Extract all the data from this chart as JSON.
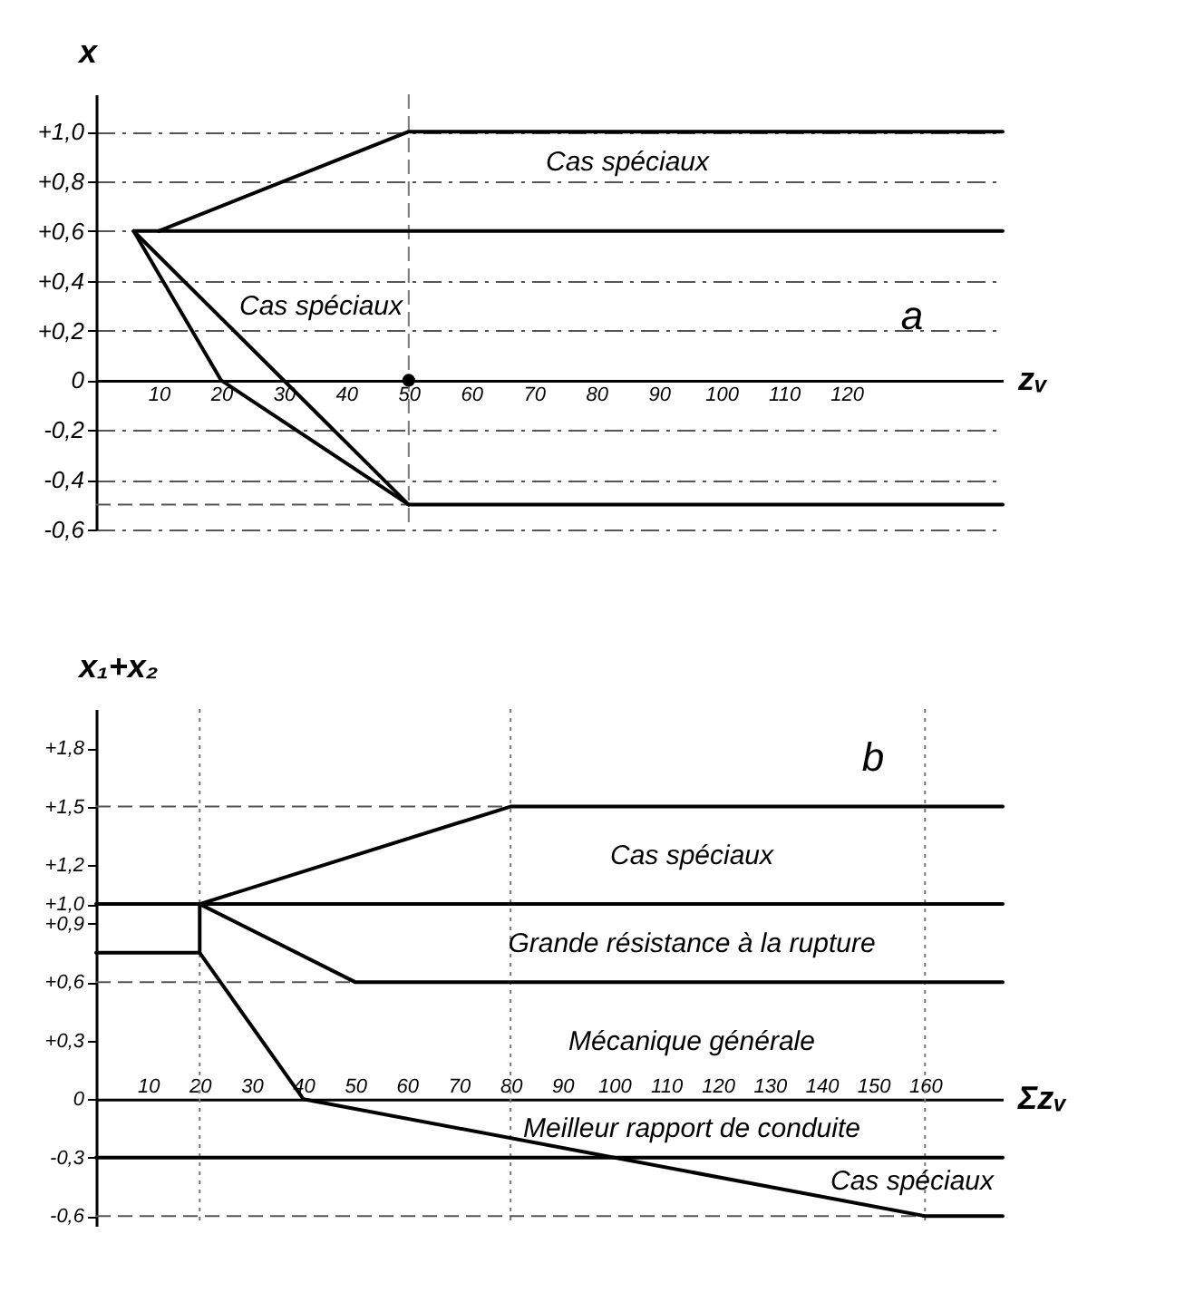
{
  "chart_data": [
    {
      "type": "line",
      "xlabel": "zᵥ",
      "ylabel": "x",
      "xlim": [
        0,
        145
      ],
      "ylim": [
        -0.6,
        1.15
      ],
      "xticks": [
        10,
        20,
        30,
        40,
        50,
        60,
        70,
        80,
        90,
        100,
        110,
        120
      ],
      "yticks": [
        {
          "value": 1.0,
          "label": "+1,0"
        },
        {
          "value": 0.8,
          "label": "+0,8"
        },
        {
          "value": 0.6,
          "label": "+0,6"
        },
        {
          "value": 0.4,
          "label": "+0,4"
        },
        {
          "value": 0.2,
          "label": "+0,2"
        },
        0,
        {
          "value": -0.2,
          "label": "-0,2"
        },
        {
          "value": -0.4,
          "label": "-0,4"
        },
        {
          "value": -0.6,
          "label": "-0,6"
        }
      ],
      "grid": "y",
      "line_style": "solid",
      "series": [
        {
          "color": "#000000",
          "x": [
            10,
            50,
            145
          ],
          "values": [
            0.6,
            1.0,
            1.0
          ]
        },
        {
          "color": "#000000",
          "x": [
            6,
            145
          ],
          "values": [
            0.6,
            0.6
          ]
        },
        {
          "color": "#000000",
          "x": [
            6,
            20,
            50,
            145
          ],
          "values": [
            0.6,
            0,
            -0.5,
            -0.5
          ]
        },
        {
          "color": "#000000",
          "x": [
            6,
            50
          ],
          "values": [
            0.6,
            -0.5
          ]
        },
        {
          "type": "scatter",
          "marker": "circle",
          "color": "#000000",
          "x": [
            50
          ],
          "values": [
            0
          ]
        }
      ],
      "ref_lines": [
        {
          "axis": "y",
          "value": -0.5,
          "line_style": "dashed",
          "color": "#555555"
        },
        {
          "axis": "x",
          "value": 50,
          "line_style": "dashed",
          "color": "#777777"
        }
      ],
      "annotations": [
        "Cas spéciaux",
        "Cas spéciaux",
        "a"
      ]
    },
    {
      "type": "line",
      "xlabel": "Σzᵥ",
      "ylabel": "x₁+x₂",
      "xlim": [
        0,
        175
      ],
      "ylim": [
        -0.65,
        2.0
      ],
      "xticks": [
        10,
        20,
        30,
        40,
        50,
        60,
        70,
        80,
        90,
        100,
        110,
        120,
        130,
        140,
        150,
        160
      ],
      "yticks": [
        {
          "value": 1.8,
          "label": "+1,8"
        },
        {
          "value": 1.5,
          "label": "+1,5"
        },
        {
          "value": 1.2,
          "label": "+1,2"
        },
        {
          "value": 1.0,
          "label": "+1,0"
        },
        {
          "value": 0.9,
          "label": "+0,9"
        },
        {
          "value": 0.6,
          "label": "+0,6"
        },
        {
          "value": 0.3,
          "label": "+0,3"
        },
        0,
        {
          "value": -0.3,
          "label": "-0,3"
        },
        {
          "value": -0.6,
          "label": "-0,6"
        }
      ],
      "line_style": "solid",
      "series": [
        {
          "color": "#000000",
          "x": [
            0,
            175
          ],
          "values": [
            1.0,
            1.0
          ]
        },
        {
          "color": "#000000",
          "x": [
            0,
            20,
            20
          ],
          "values": [
            0.75,
            0.75,
            1.0
          ]
        },
        {
          "color": "#000000",
          "x": [
            20,
            80,
            175
          ],
          "values": [
            1.0,
            1.5,
            1.5
          ]
        },
        {
          "color": "#000000",
          "x": [
            20,
            50,
            175
          ],
          "values": [
            1.0,
            0.6,
            0.6
          ]
        },
        {
          "color": "#000000",
          "x": [
            20,
            40,
            160,
            175
          ],
          "values": [
            0.75,
            0,
            -0.6,
            -0.6
          ]
        },
        {
          "color": "#000000",
          "x": [
            0,
            175
          ],
          "values": [
            -0.3,
            -0.3
          ]
        }
      ],
      "ref_lines": [
        {
          "axis": "y",
          "value": 1.5,
          "line_style": "dashed",
          "color": "#555555"
        },
        {
          "axis": "y",
          "value": 0.6,
          "line_style": "dashed",
          "color": "#555555"
        },
        {
          "axis": "y",
          "value": -0.6,
          "line_style": "dashed",
          "color": "#555555"
        },
        {
          "axis": "x",
          "value": 20,
          "line_style": "dotted",
          "color": "#777777"
        },
        {
          "axis": "x",
          "value": 80,
          "line_style": "dotted",
          "color": "#777777"
        },
        {
          "axis": "x",
          "value": 160,
          "line_style": "dotted",
          "color": "#777777"
        }
      ],
      "annotations": [
        "Cas spéciaux",
        "Grande résistance à la rupture",
        "Mécanique générale",
        "Meilleur rapport de conduite",
        "Cas spéciaux",
        "b"
      ]
    }
  ]
}
